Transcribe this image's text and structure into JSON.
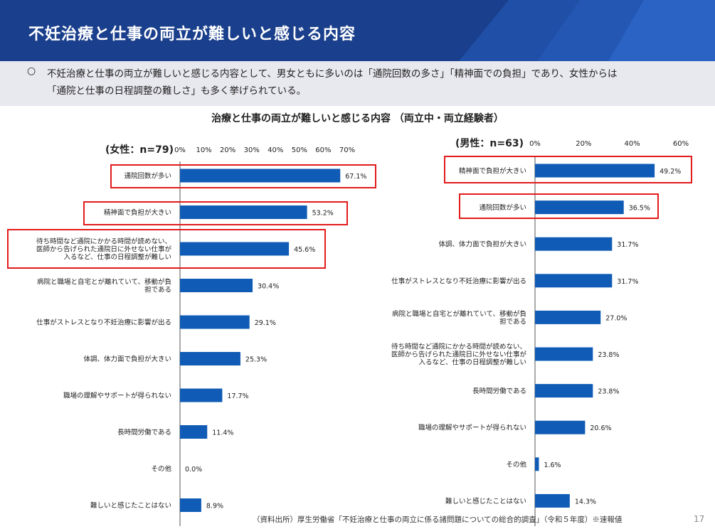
{
  "header": {
    "title": "不妊治療と仕事の両立が難しいと感じる内容"
  },
  "summary": {
    "bullet": "○",
    "line1": "不妊治療と仕事の両立が難しいと感じる内容として、男女ともに多いのは「通院回数の多さ」「精神面での負担」であり、女性からは",
    "line2": "「通院と仕事の日程調整の難しさ」も多く挙げられている。"
  },
  "chart_title": "治療と仕事の両立が難しいと感じる内容 （両立中・両立経験者）",
  "colors": {
    "bar": "#0f5bb5",
    "highlight": "#e21b1b",
    "header": "#1a3f8c"
  },
  "chart_data": [
    {
      "type": "bar",
      "orientation": "horizontal",
      "group_label": "(女性：n=79)",
      "xlim": [
        0,
        70
      ],
      "ticks": [
        "0%",
        "10%",
        "20%",
        "30%",
        "40%",
        "50%",
        "60%",
        "70%"
      ],
      "categories": [
        [
          "通院回数が多い"
        ],
        [
          "精神面で負担が大きい"
        ],
        [
          "待ち時間など通院にかかる時間が読めない、",
          "医師から告げられた通院日に外せない仕事が",
          "入るなど、仕事の日程調整が難しい"
        ],
        [
          "病院と職場と自宅とが離れていて、移動が負",
          "担である"
        ],
        [
          "仕事がストレスとなり不妊治療に影響が出る"
        ],
        [
          "体調、体力面で負担が大きい"
        ],
        [
          "職場の理解やサポートが得られない"
        ],
        [
          "長時間労働である"
        ],
        [
          "その他"
        ],
        [
          "難しいと感じたことはない"
        ]
      ],
      "values": [
        67.1,
        53.2,
        45.6,
        30.4,
        29.1,
        25.3,
        17.7,
        11.4,
        0.0,
        8.9
      ],
      "value_labels": [
        "67.1%",
        "53.2%",
        "45.6%",
        "30.4%",
        "29.1%",
        "25.3%",
        "17.7%",
        "11.4%",
        "0.0%",
        "8.9%"
      ],
      "highlighted": [
        0,
        1,
        2
      ]
    },
    {
      "type": "bar",
      "orientation": "horizontal",
      "group_label": "(男性：n=63)",
      "xlim": [
        0,
        60
      ],
      "ticks": [
        "0%",
        "20%",
        "40%",
        "60%"
      ],
      "categories": [
        [
          "精神面で負担が大きい"
        ],
        [
          "通院回数が多い"
        ],
        [
          "体調、体力面で負担が大きい"
        ],
        [
          "仕事がストレスとなり不妊治療に影響が出る"
        ],
        [
          "病院と職場と自宅とが離れていて、移動が負",
          "担である"
        ],
        [
          "待ち時間など通院にかかる時間が読めない、",
          "医師から告げられた通院日に外せない仕事が",
          "入るなど、仕事の日程調整が難しい"
        ],
        [
          "長時間労働である"
        ],
        [
          "職場の理解やサポートが得られない"
        ],
        [
          "その他"
        ],
        [
          "難しいと感じたことはない"
        ]
      ],
      "values": [
        49.2,
        36.5,
        31.7,
        31.7,
        27.0,
        23.8,
        23.8,
        20.6,
        1.6,
        14.3
      ],
      "value_labels": [
        "49.2%",
        "36.5%",
        "31.7%",
        "31.7%",
        "27.0%",
        "23.8%",
        "23.8%",
        "20.6%",
        "1.6%",
        "14.3%"
      ],
      "highlighted": [
        0,
        1
      ]
    }
  ],
  "source": "（資料出所）厚生労働省「不妊治療と仕事の両立に係る諸問題についての総合的調査」（令和５年度）※速報値",
  "page_number": "17"
}
